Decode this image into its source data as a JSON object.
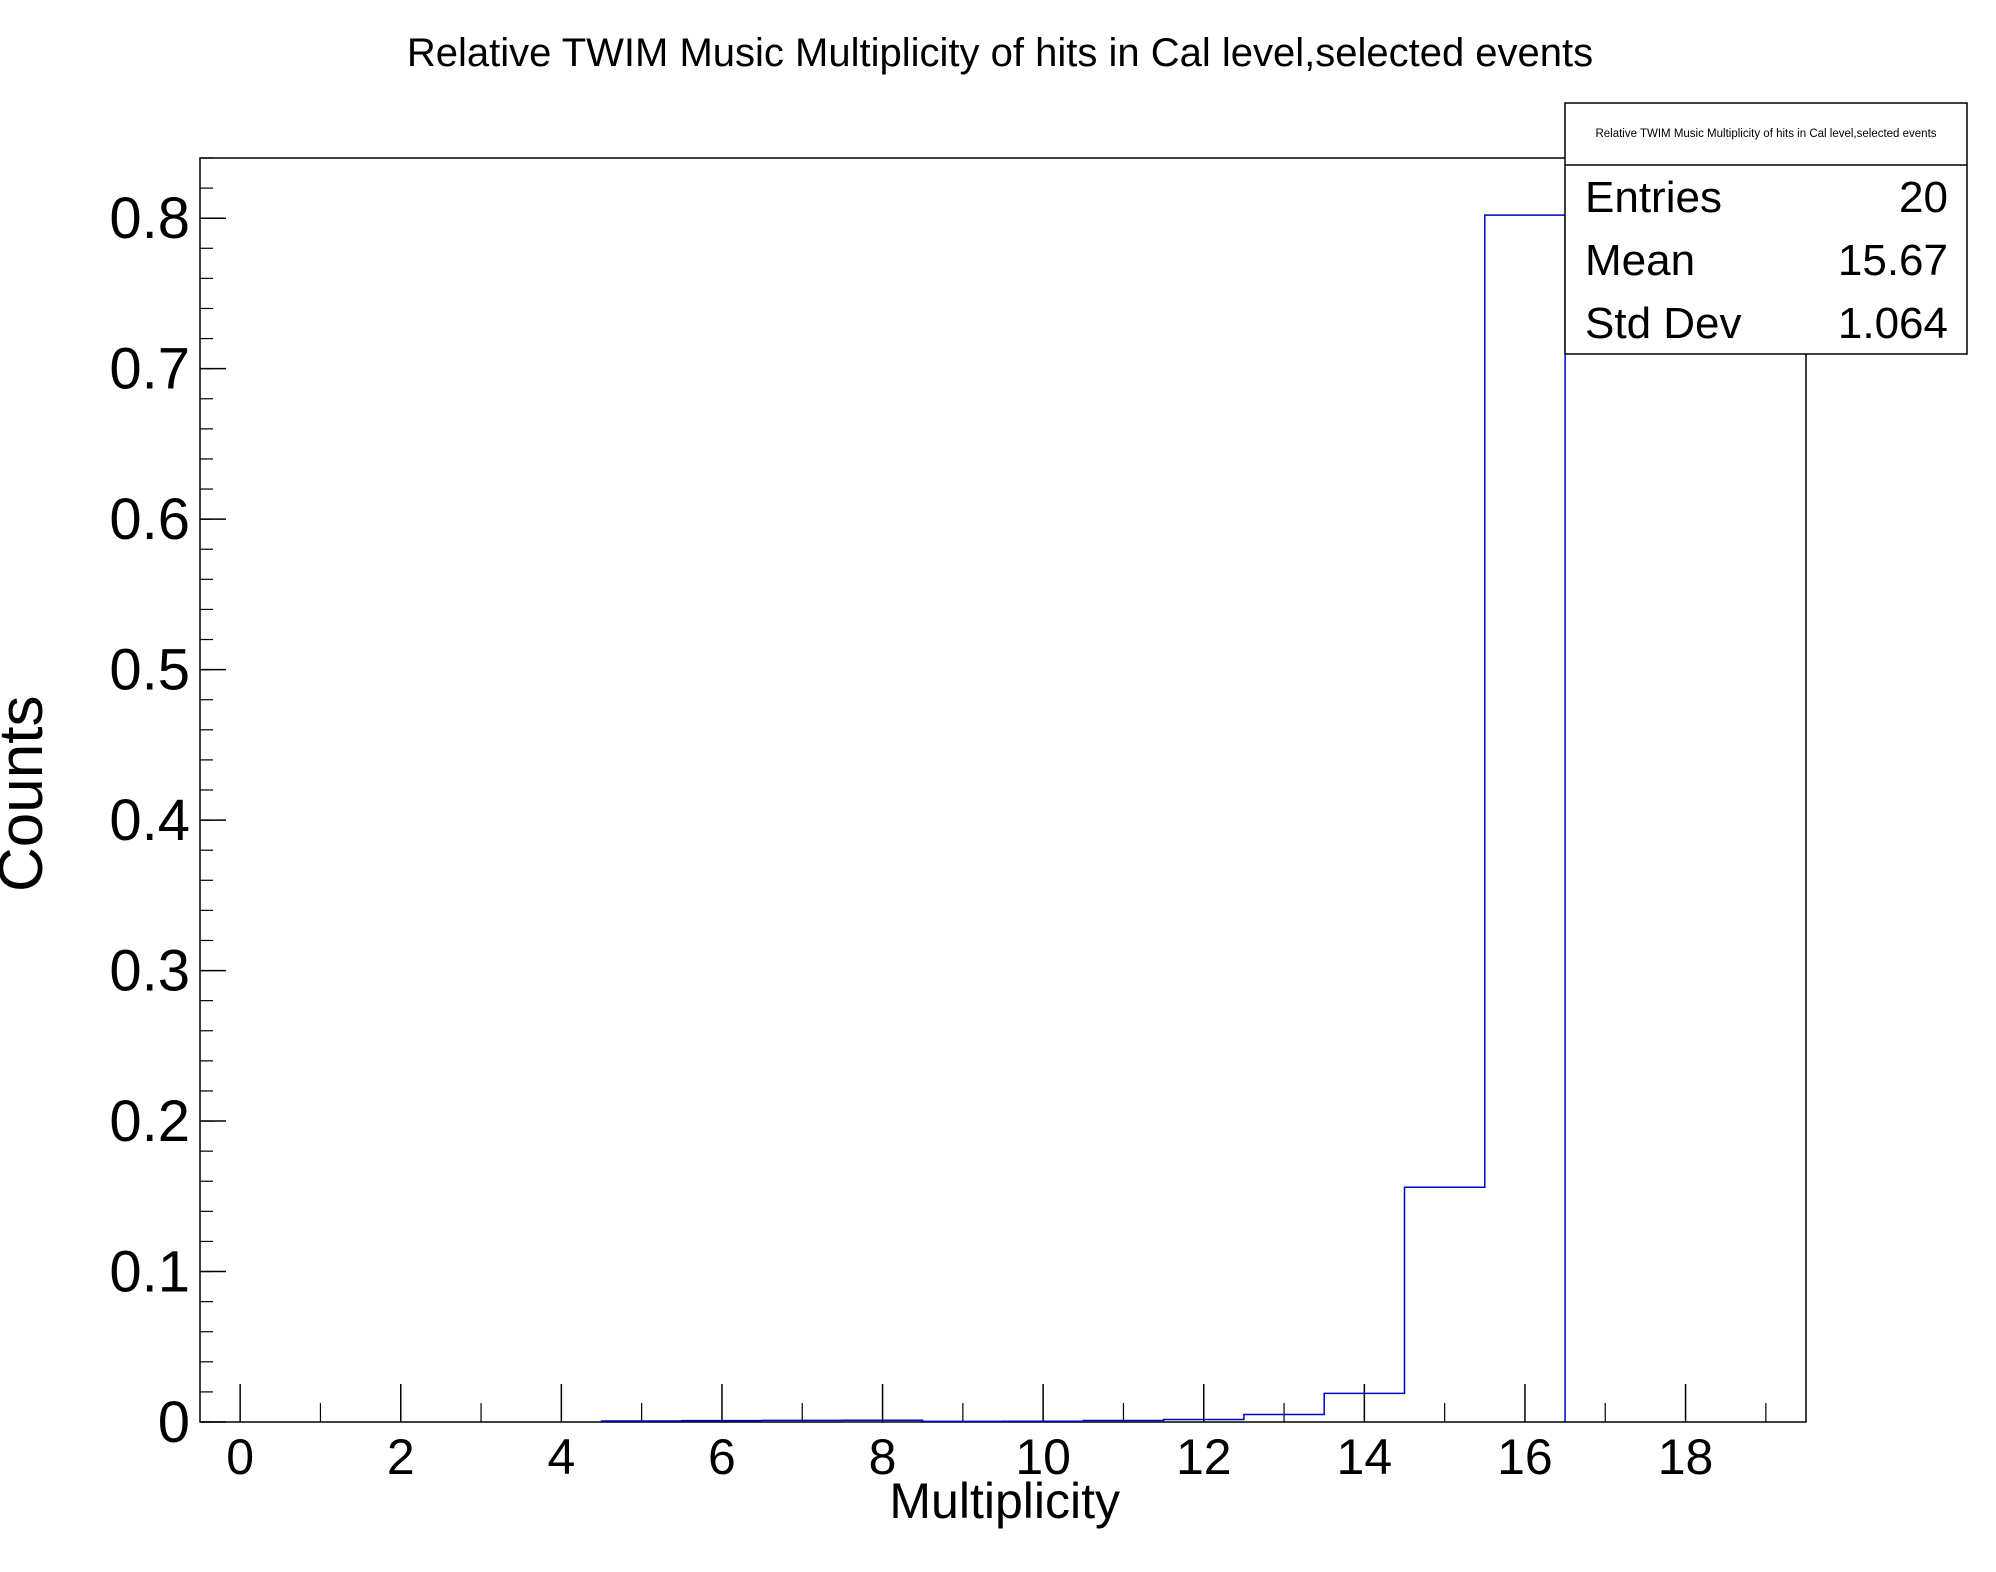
{
  "chart_data": {
    "type": "bar",
    "title": "Relative TWIM Music Multiplicity of hits in Cal level,selected events",
    "xlabel": "Multiplicity",
    "ylabel": "Counts",
    "xlim": [
      -0.5,
      19.5
    ],
    "ylim": [
      0,
      0.84
    ],
    "bin_width": 1,
    "x_ticks": [
      "0",
      "2",
      "4",
      "6",
      "8",
      "10",
      "12",
      "14",
      "16",
      "18"
    ],
    "y_ticks": [
      "0",
      "0.1",
      "0.2",
      "0.3",
      "0.4",
      "0.5",
      "0.6",
      "0.7",
      "0.8"
    ],
    "series": [
      {
        "color": "#0000cc",
        "x": [
          5,
          6,
          7,
          8,
          9,
          10,
          11,
          12,
          13,
          14,
          15,
          16
        ],
        "values": [
          0.0007,
          0.0009,
          0.0011,
          0.0012,
          0.0004,
          0.0005,
          0.001,
          0.0017,
          0.005,
          0.019,
          0.156,
          0.802
        ]
      }
    ],
    "grid": false,
    "stats_box": {
      "title": "Relative TWIM Music Multiplicity of hits in Cal level,selected events",
      "rows": [
        {
          "label": "Entries",
          "value": "20"
        },
        {
          "label": "Mean",
          "value": "15.67"
        },
        {
          "label": "Std Dev",
          "value": "1.064"
        }
      ]
    }
  }
}
